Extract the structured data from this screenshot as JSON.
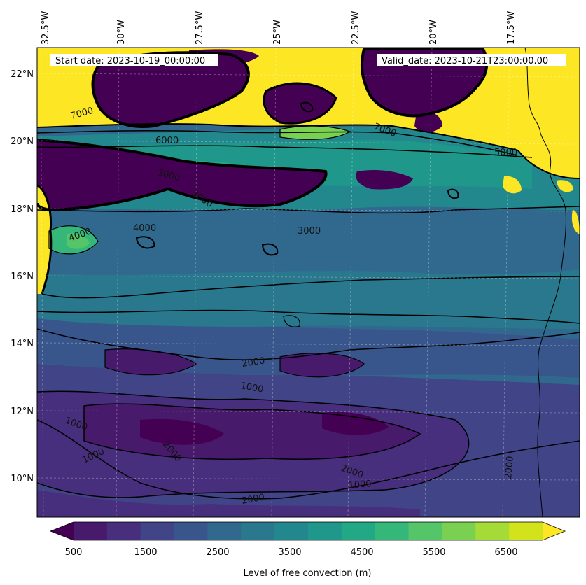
{
  "header": {
    "start_date": "Start date: 2023-10-19_00:00:00",
    "valid_date": "Valid_date: 2023-10-21T23:00:00.00"
  },
  "map": {
    "lon_labels": [
      "32.5°W",
      "30°W",
      "27.5°W",
      "25°W",
      "22.5°W",
      "20°W",
      "17.5°W"
    ],
    "lat_labels": [
      "22°N",
      "20°N",
      "18°N",
      "16°N",
      "14°N",
      "12°N",
      "10°N"
    ],
    "contour_labels": [
      "7000",
      "7000",
      "6000",
      "5000",
      "4000",
      "3000",
      "3000",
      "2000",
      "2000",
      "1000",
      "1000",
      "1000",
      "2000",
      "2000",
      "1000",
      "4000",
      "3000",
      "2000"
    ]
  },
  "colorbar": {
    "label": "Level of free convection (m)",
    "ticks": [
      "500",
      "1500",
      "2500",
      "3500",
      "4500",
      "5500",
      "6500"
    ],
    "colors": [
      "#440154",
      "#481a6c",
      "#472f7d",
      "#414487",
      "#39568c",
      "#31688e",
      "#2a788e",
      "#23888e",
      "#1f988b",
      "#22a884",
      "#35b779",
      "#54c568",
      "#7ad151",
      "#a5db36",
      "#d2e21b",
      "#fde725"
    ]
  }
}
